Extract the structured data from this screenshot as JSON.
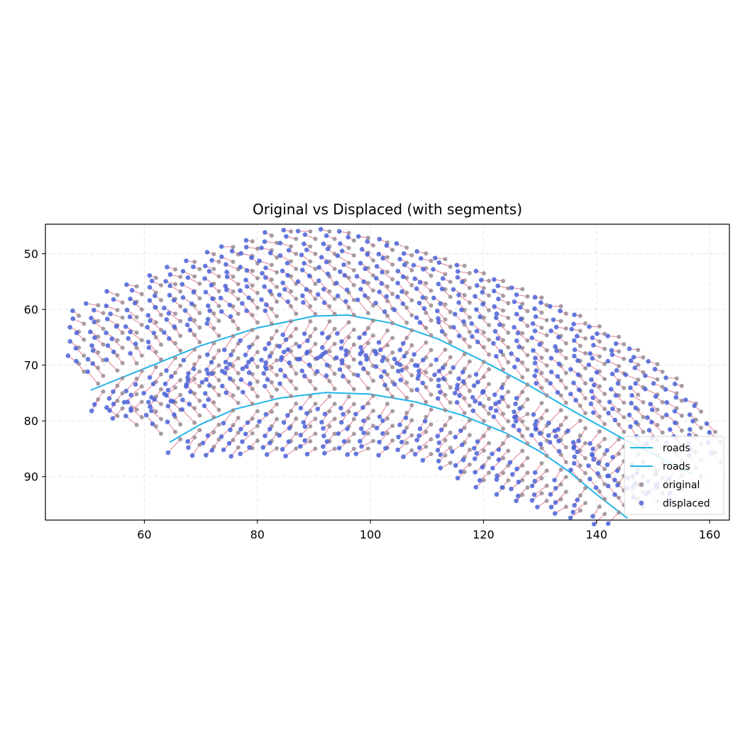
{
  "chart_data": {
    "type": "scatter",
    "title": "Original vs Displaced (with segments)",
    "xlabel": "",
    "ylabel": "",
    "xlim": [
      42.5,
      163.5
    ],
    "ylim": [
      97.8,
      44.7
    ],
    "y_inverted": true,
    "x_ticks": [
      60,
      80,
      100,
      120,
      140,
      160
    ],
    "y_ticks": [
      50,
      60,
      70,
      80,
      90
    ],
    "grid": true,
    "grid_style": "dashed",
    "legend_position": "lower-right",
    "legend": [
      {
        "label": "roads",
        "kind": "line",
        "color": "#22b4ea"
      },
      {
        "label": "roads",
        "kind": "line",
        "color": "#22b4ea"
      },
      {
        "label": "original",
        "kind": "marker",
        "color": "#9a8c94"
      },
      {
        "label": "displaced",
        "kind": "marker",
        "color": "#4a63d8"
      }
    ],
    "colors": {
      "original": "#9a8c94",
      "displaced": "#4a63d8",
      "segment": "#d9536e",
      "road": "#22b4ea"
    },
    "roads": [
      {
        "name": "roads",
        "points": [
          [
            50.5,
            74.5
          ],
          [
            60,
            70.6
          ],
          [
            70,
            66.5
          ],
          [
            80,
            63.3
          ],
          [
            90,
            61.2
          ],
          [
            96,
            61.0
          ],
          [
            104,
            62.5
          ],
          [
            112,
            65.3
          ],
          [
            120,
            69.3
          ],
          [
            128,
            73.6
          ],
          [
            136,
            78.3
          ],
          [
            144,
            82.8
          ],
          [
            152,
            87.0
          ],
          [
            157,
            89.5
          ]
        ]
      },
      {
        "name": "roads",
        "points": [
          [
            64.5,
            83.8
          ],
          [
            70,
            80.6
          ],
          [
            76,
            77.9
          ],
          [
            84,
            75.9
          ],
          [
            92,
            74.9
          ],
          [
            100,
            75.2
          ],
          [
            108,
            76.6
          ],
          [
            116,
            78.9
          ],
          [
            124,
            82.2
          ],
          [
            130,
            85.5
          ],
          [
            135,
            89.0
          ],
          [
            140,
            93.2
          ],
          [
            145.5,
            97.5
          ]
        ]
      }
    ],
    "lattice": {
      "rows": 28,
      "cols": 35,
      "upper_edge": [
        [
          45,
          63.0
        ],
        [
          55,
          57.5
        ],
        [
          65,
          53.0
        ],
        [
          75,
          49.0
        ],
        [
          85,
          46.0
        ],
        [
          95,
          46.0
        ],
        [
          105,
          48.5
        ],
        [
          115,
          51.5
        ],
        [
          125,
          55.5
        ],
        [
          135,
          60.0
        ],
        [
          145,
          65.5
        ],
        [
          155,
          73.0
        ],
        [
          161,
          82.0
        ]
      ],
      "lower_edge": [
        [
          45,
          64.0
        ],
        [
          50,
          74.5
        ],
        [
          55,
          79.0
        ],
        [
          62,
          82.3
        ],
        [
          70,
          84.6
        ],
        [
          80,
          84.9
        ],
        [
          90,
          85.0
        ],
        [
          98,
          85.0
        ],
        [
          104,
          84.8
        ],
        [
          110,
          86.0
        ],
        [
          118,
          89.8
        ],
        [
          126,
          93.0
        ],
        [
          134,
          95.5
        ],
        [
          142,
          97.0
        ],
        [
          152,
          94.0
        ],
        [
          161,
          87.5
        ]
      ]
    }
  }
}
